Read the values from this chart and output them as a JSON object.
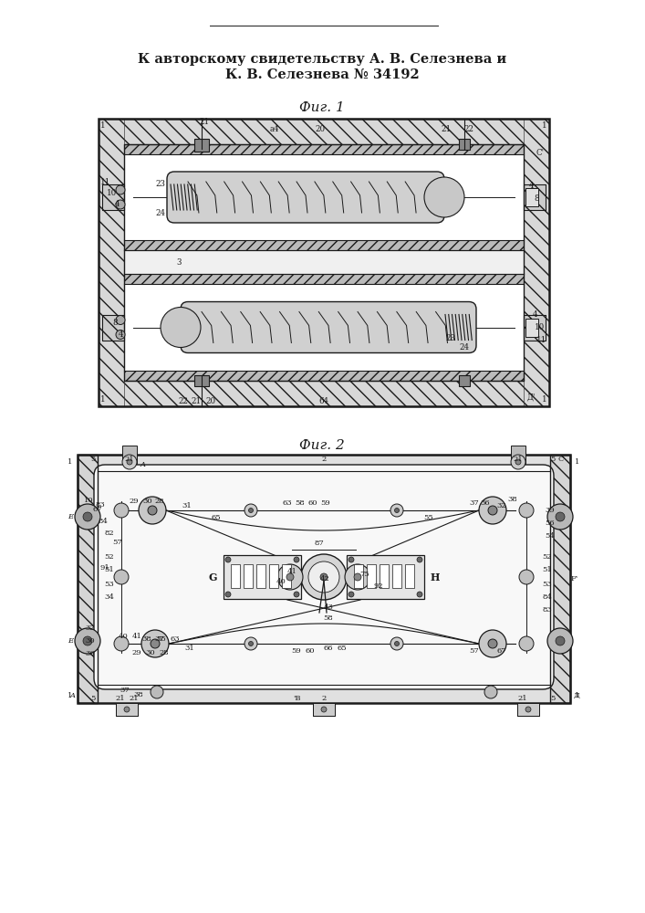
{
  "title_line1": "К авторскому свидетельству А. В. Селезнева и",
  "title_line2": "К. В. Селезнева № 34192",
  "fig1_label": "Фиг. 1",
  "fig2_label": "Фиг. 2",
  "bg_color": "#ffffff",
  "line_color": "#1a1a1a"
}
